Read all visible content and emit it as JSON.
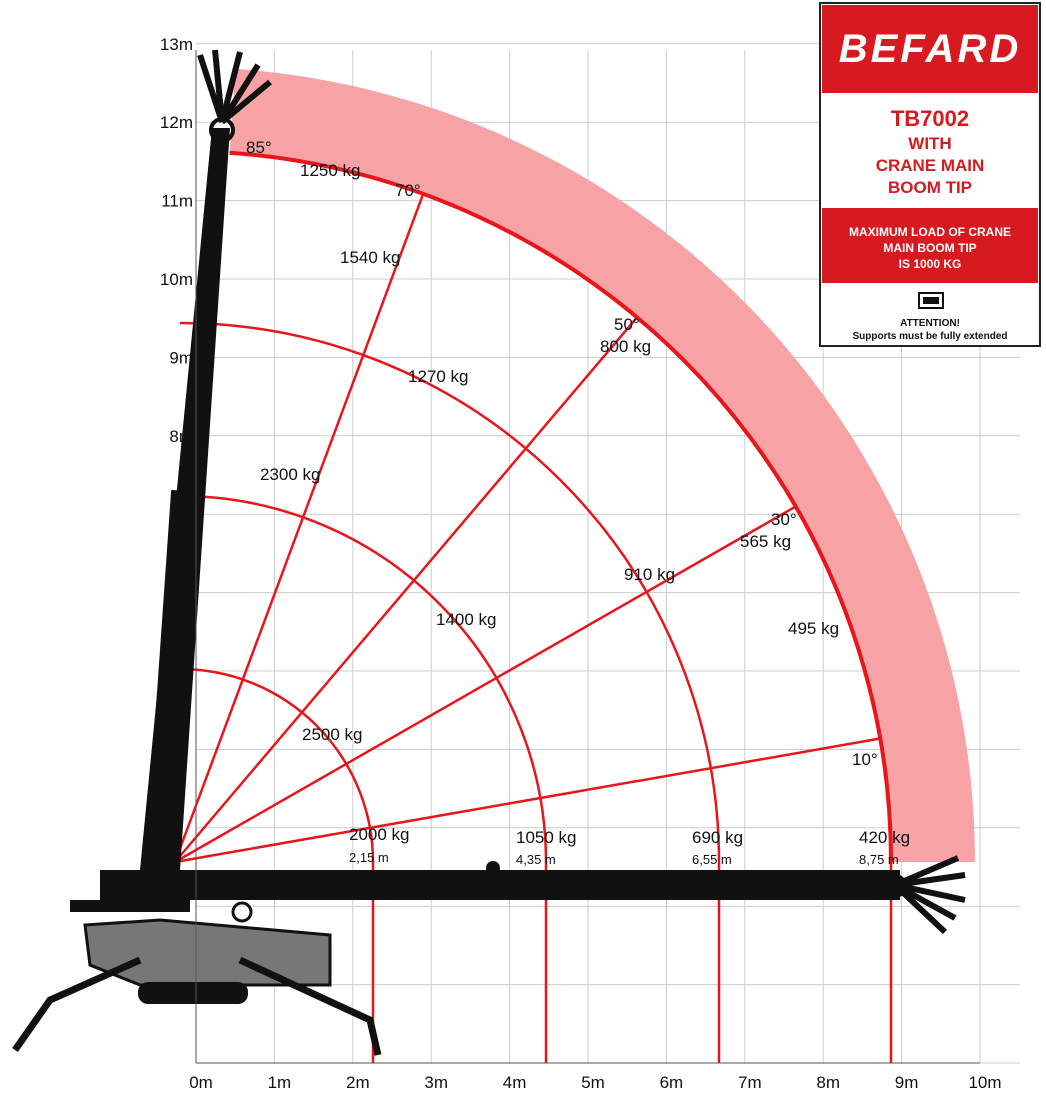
{
  "header": {
    "brand": "BEFARD",
    "model": "TB7002",
    "subtitle": [
      "WITH",
      "CRANE MAIN",
      "BOOM TIP"
    ],
    "notice": [
      "MAXIMUM LOAD OF CRANE",
      "MAIN BOOM TIP",
      "IS 1000 KG"
    ],
    "attention": "ATTENTION!",
    "support_note": "Supports must be fully extended"
  },
  "x_axis": {
    "labels": [
      "0m",
      "1m",
      "2m",
      "3m",
      "4m",
      "5m",
      "6m",
      "7m",
      "8m",
      "9m",
      "10m"
    ]
  },
  "y_axis": {
    "labels": [
      "8m",
      "9m",
      "10m",
      "11m",
      "12m",
      "13m"
    ]
  },
  "angles": [
    "85°",
    "70°",
    "50°",
    "30°",
    "10°"
  ],
  "loads": [
    "1250 kg",
    "1540 kg",
    "1270 kg",
    "2300 kg",
    "800 kg",
    "910 kg",
    "565 kg",
    "1400 kg",
    "495 kg",
    "2500 kg",
    "2000 kg",
    "1050 kg",
    "690 kg",
    "420 kg"
  ],
  "radii": [
    "2,15 m",
    "4,35 m",
    "6,55 m",
    "8,75 m"
  ]
}
